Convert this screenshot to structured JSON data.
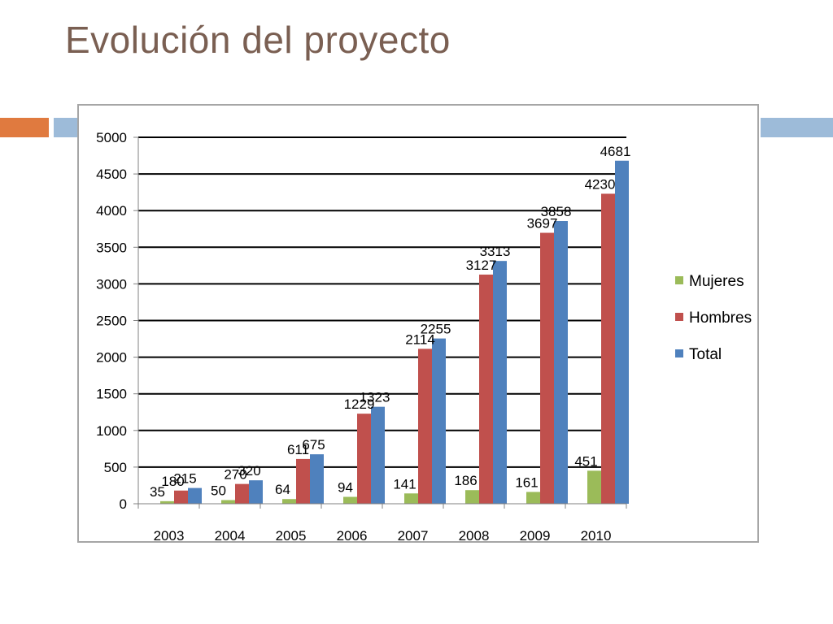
{
  "slide": {
    "title": "Evolución del proyecto"
  },
  "colors": {
    "title": "#7a5f52",
    "accent_orange": "#e07a3f",
    "accent_blue": "#9dbbd9",
    "mujeres": "#9bbb59",
    "hombres": "#c0504d",
    "total": "#4f81bd"
  },
  "chart_data": {
    "type": "bar",
    "title": "",
    "xlabel": "",
    "ylabel": "",
    "categories": [
      "2003",
      "2004",
      "2005",
      "2006",
      "2007",
      "2008",
      "2009",
      "2010"
    ],
    "series": [
      {
        "name": "Mujeres",
        "values": [
          35,
          50,
          64,
          94,
          141,
          186,
          161,
          451
        ]
      },
      {
        "name": "Hombres",
        "values": [
          180,
          270,
          611,
          1229,
          2114,
          3127,
          3697,
          4230
        ]
      },
      {
        "name": "Total",
        "values": [
          215,
          320,
          675,
          1323,
          2255,
          3313,
          3858,
          4681
        ]
      }
    ],
    "ylim": [
      0,
      5000
    ],
    "yticks": [
      "0",
      "500",
      "1000",
      "1500",
      "2000",
      "2500",
      "3000",
      "3500",
      "4000",
      "4500",
      "5000"
    ],
    "grid": true,
    "legend": "right"
  }
}
